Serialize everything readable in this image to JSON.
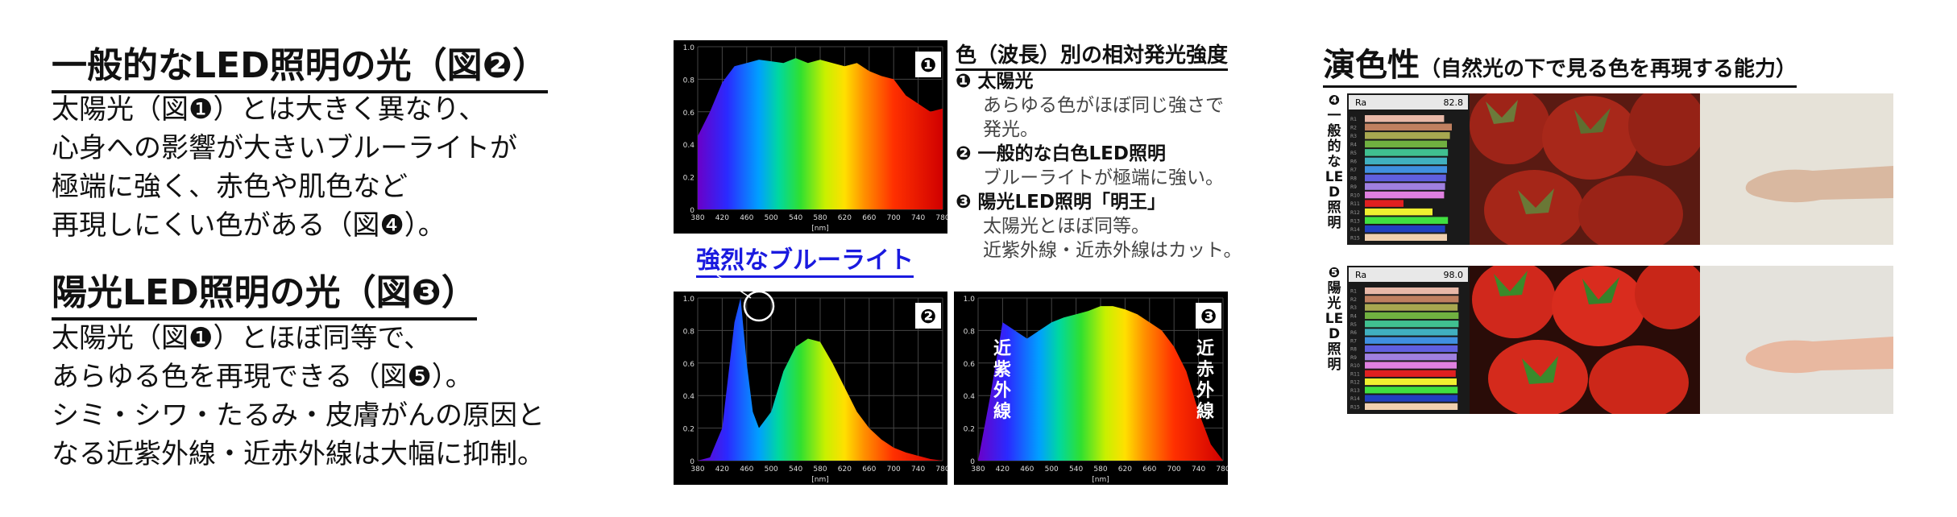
{
  "left": {
    "heading1": "一般的なLED照明の光（図❷）",
    "para1": [
      "太陽光（図❶）とは大きく異なり、",
      "心身への影響が大きいブルーライトが",
      "極端に強く、赤色や肌色など",
      "再現しにくい色がある（図❹）。"
    ],
    "heading2": "陽光LED照明の光（図❸）",
    "para2": [
      "太陽光（図❶）とほぼ同等で、",
      "あらゆる色を再現できる（図❺）。",
      "シミ・シワ・たるみ・皮膚がんの原因と",
      "なる近紫外線・近赤外線は大幅に抑制。"
    ]
  },
  "legend": {
    "title": "色（波長）別の相対発光強度",
    "items": [
      {
        "num": "❶",
        "title": "太陽光",
        "lines": [
          "あらゆる色がほぼ同じ強さで",
          "発光。"
        ]
      },
      {
        "num": "❷",
        "title": "一般的な白色LED照明",
        "lines": [
          "ブルーライトが極端に強い。"
        ]
      },
      {
        "num": "❸",
        "title": "陽光LED照明「明王」",
        "lines": [
          "太陽光とほぼ同等。",
          "近紫外線・近赤外線はカット。"
        ]
      }
    ]
  },
  "blue_label": "強烈なブルーライト",
  "chart_data": [
    {
      "type": "area",
      "badge": "❶",
      "x": [
        380,
        400,
        420,
        440,
        460,
        480,
        500,
        520,
        540,
        560,
        580,
        600,
        620,
        640,
        660,
        680,
        700,
        720,
        740,
        760,
        780
      ],
      "values": [
        0.45,
        0.6,
        0.78,
        0.88,
        0.9,
        0.92,
        0.91,
        0.9,
        0.93,
        0.9,
        0.92,
        0.9,
        0.88,
        0.9,
        0.85,
        0.82,
        0.8,
        0.7,
        0.65,
        0.6,
        0.62
      ],
      "xlim": [
        380,
        780
      ],
      "ylim": [
        0,
        1.0
      ],
      "xlabel": "[nm]",
      "xticks": [
        "380",
        "420",
        "460",
        "500",
        "540",
        "580",
        "620",
        "660",
        "700",
        "740",
        "780"
      ],
      "xtick_labels_shown": [
        "380",
        "420",
        "460",
        "500",
        "540",
        "580",
        "620",
        "660",
        "700",
        "740",
        "780"
      ],
      "yticks": [
        "0",
        "0.2",
        "0.4",
        "0.6",
        "0.8",
        "1.0"
      ]
    },
    {
      "type": "area",
      "badge": "❷",
      "x": [
        380,
        400,
        420,
        440,
        450,
        460,
        470,
        480,
        500,
        520,
        540,
        560,
        580,
        600,
        620,
        640,
        660,
        680,
        700,
        720,
        740,
        760,
        780
      ],
      "values": [
        0.0,
        0.02,
        0.2,
        0.85,
        1.0,
        0.6,
        0.3,
        0.2,
        0.3,
        0.55,
        0.7,
        0.75,
        0.73,
        0.6,
        0.45,
        0.3,
        0.2,
        0.13,
        0.08,
        0.05,
        0.03,
        0.01,
        0.0
      ],
      "xlim": [
        380,
        780
      ],
      "ylim": [
        0,
        1.0
      ],
      "xlabel": "[nm]",
      "xtick_labels_shown": [
        "380",
        "420",
        "460",
        "500",
        "540",
        "580",
        "620",
        "660",
        "700",
        "740",
        "780"
      ],
      "yticks": [
        "0",
        "0.2",
        "0.4",
        "0.6",
        "0.8",
        "1.0"
      ]
    },
    {
      "type": "area",
      "badge": "❸",
      "x": [
        380,
        400,
        420,
        440,
        460,
        480,
        500,
        520,
        540,
        560,
        580,
        600,
        620,
        640,
        660,
        680,
        700,
        720,
        740,
        760,
        780
      ],
      "values": [
        0.0,
        0.4,
        0.85,
        0.8,
        0.75,
        0.8,
        0.85,
        0.88,
        0.9,
        0.92,
        0.95,
        0.95,
        0.93,
        0.9,
        0.85,
        0.8,
        0.7,
        0.55,
        0.3,
        0.1,
        0.0
      ],
      "xlim": [
        380,
        780
      ],
      "ylim": [
        0,
        1.0
      ],
      "xlabel": "[nm]",
      "xtick_labels_shown": [
        "380",
        "420",
        "460",
        "500",
        "540",
        "580",
        "620",
        "660",
        "700",
        "740",
        "780"
      ],
      "yticks": [
        "0",
        "0.2",
        "0.4",
        "0.6",
        "0.8",
        "1.0"
      ],
      "left_label": "近紫外線",
      "right_label": "近赤外線"
    }
  ],
  "cri": {
    "title": "演色性",
    "subtitle": "（自然光の下で見る色を再現する能力）",
    "rows": [
      {
        "num": "❹",
        "label": "一般的なLED照明",
        "ra_label": "Ra",
        "ra_value": "82.8",
        "bars": [
          0.82,
          0.9,
          0.88,
          0.85,
          0.86,
          0.85,
          0.85,
          0.84,
          0.83,
          0.82,
          0.4,
          0.7,
          0.86,
          0.83,
          0.85
        ]
      },
      {
        "num": "❺",
        "label": "陽光LED照明",
        "ra_label": "Ra",
        "ra_value": "98.0",
        "bars": [
          0.97,
          0.97,
          0.96,
          0.97,
          0.97,
          0.96,
          0.96,
          0.96,
          0.95,
          0.95,
          0.94,
          0.95,
          0.96,
          0.96,
          0.96
        ]
      }
    ],
    "bar_colors": [
      "#e8b8a8",
      "#c08060",
      "#a8a850",
      "#70b040",
      "#40c090",
      "#40b0c0",
      "#4090e0",
      "#6060e0",
      "#a080e0",
      "#e080e0",
      "#e02020",
      "#f0f030",
      "#40e040",
      "#2040c0",
      "#f0d0b0"
    ]
  }
}
